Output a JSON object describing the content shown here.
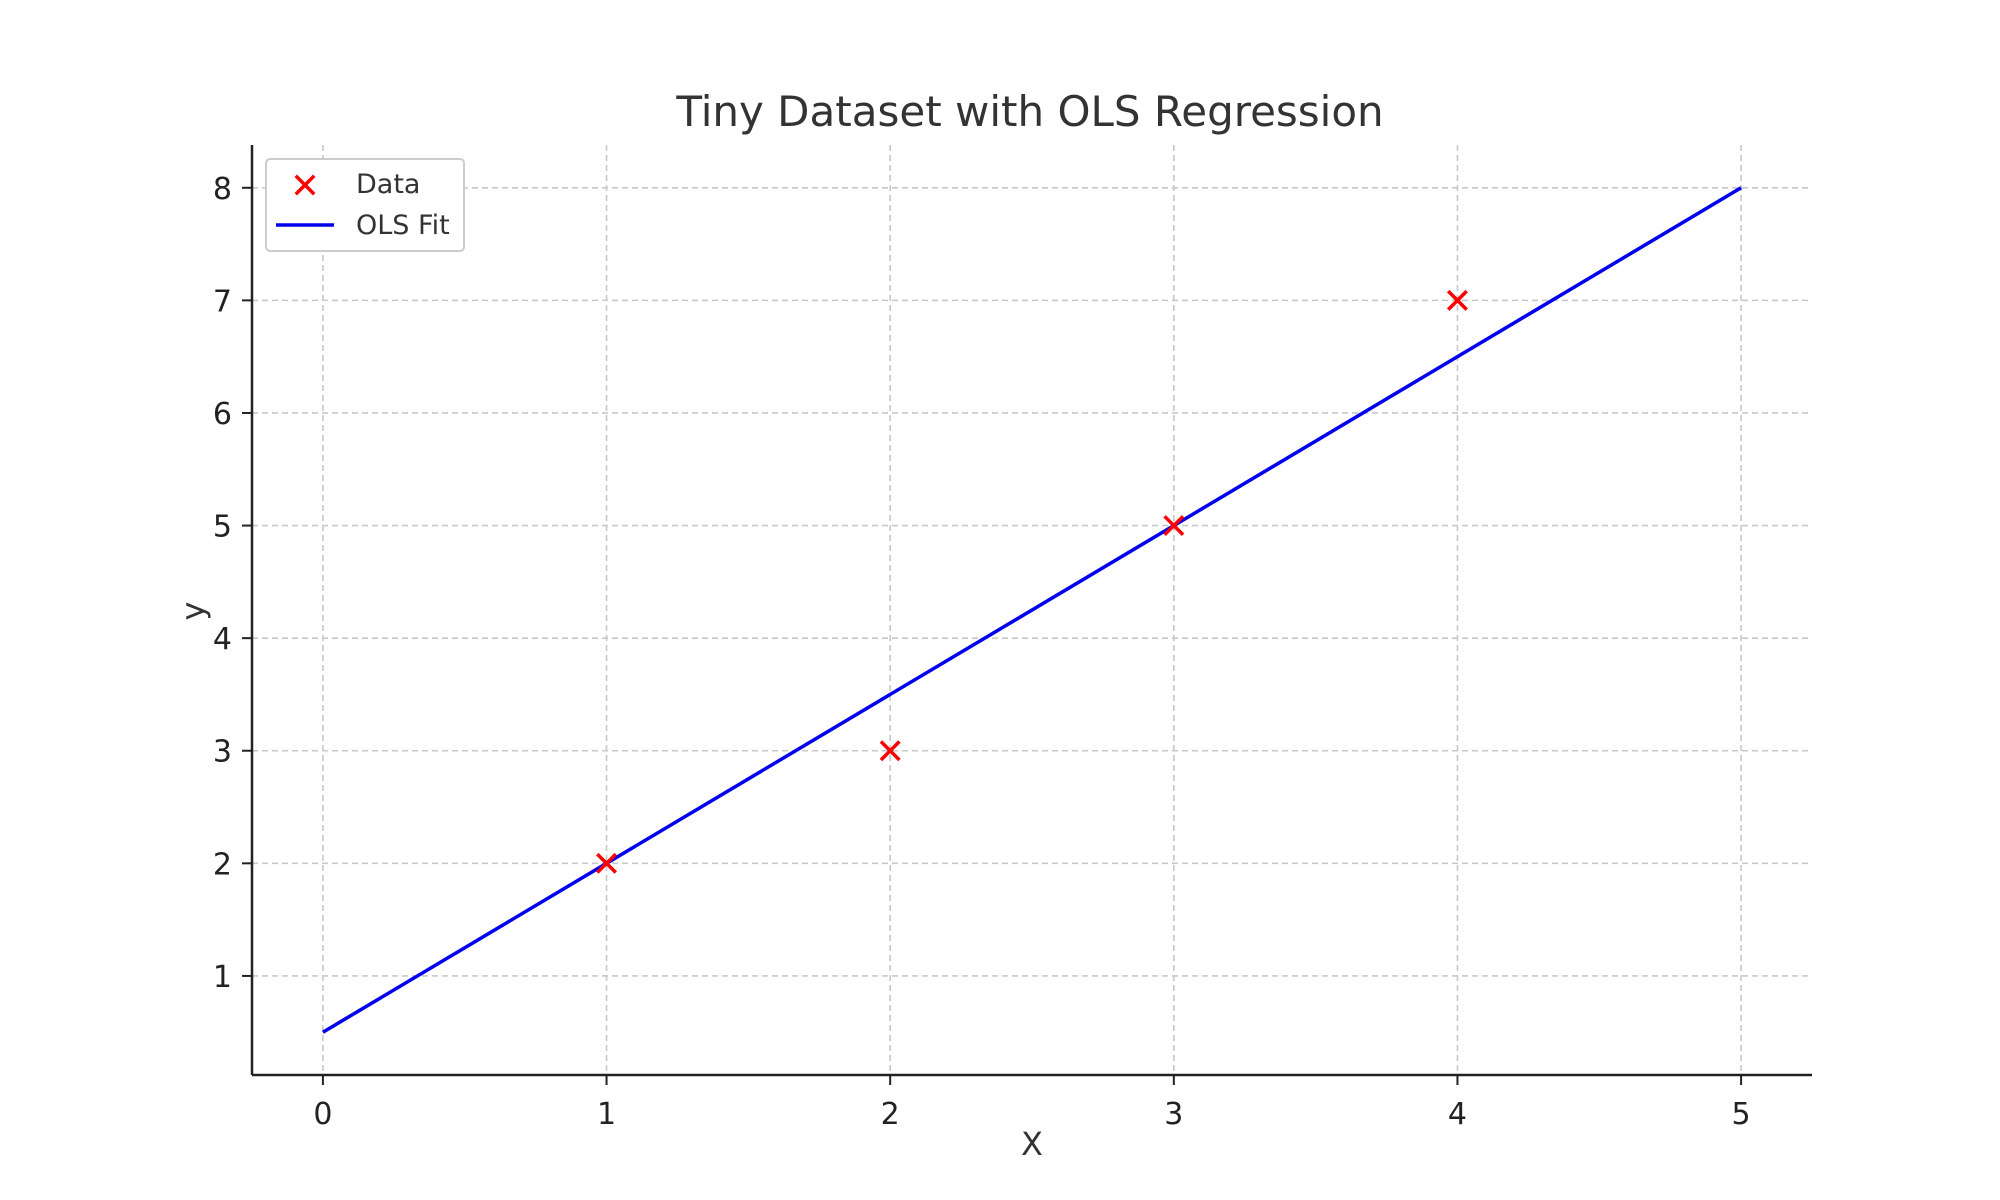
{
  "chart_data": {
    "type": "scatter",
    "title": "Tiny Dataset with OLS Regression",
    "xlabel": "X",
    "ylabel": "y",
    "xlim": [
      -0.25,
      5.25
    ],
    "ylim": [
      0.12,
      8.38
    ],
    "x_ticks": [
      "0",
      "1",
      "2",
      "3",
      "4",
      "5"
    ],
    "y_ticks": [
      "1",
      "2",
      "3",
      "4",
      "5",
      "6",
      "7",
      "8"
    ],
    "grid": true,
    "legend": "top-left",
    "series": [
      {
        "name": "Data",
        "kind": "scatter",
        "marker": "x",
        "color": "#ff0000",
        "x": [
          1,
          2,
          3,
          4
        ],
        "y": [
          2,
          3,
          5,
          7
        ]
      },
      {
        "name": "OLS Fit",
        "kind": "line",
        "color": "#0000ee",
        "x": [
          0,
          5
        ],
        "y": [
          0.5,
          8
        ]
      }
    ]
  }
}
